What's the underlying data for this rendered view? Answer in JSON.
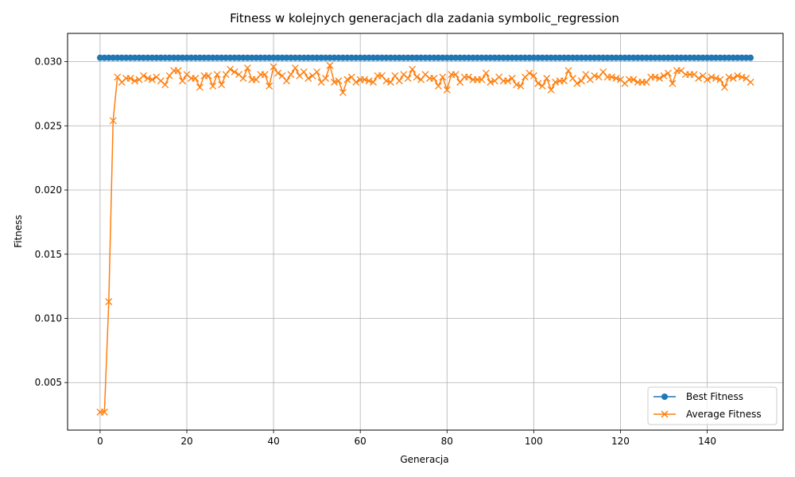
{
  "chart_data": {
    "type": "line",
    "title": "Fitness w kolejnych generacjach dla zadania symbolic_regression",
    "xlabel": "Generacja",
    "ylabel": "Fitness",
    "xlim": [
      -7.5,
      157.5
    ],
    "ylim": [
      0.0013,
      0.0322
    ],
    "xticks": [
      0,
      20,
      40,
      60,
      80,
      100,
      120,
      140
    ],
    "xtick_labels": [
      "0",
      "20",
      "40",
      "60",
      "80",
      "100",
      "120",
      "140"
    ],
    "yticks": [
      0.005,
      0.01,
      0.015,
      0.02,
      0.025,
      0.03
    ],
    "ytick_labels": [
      "0.005",
      "0.010",
      "0.015",
      "0.020",
      "0.025",
      "0.030"
    ],
    "grid": true,
    "legend_position": "lower right",
    "x": [
      0,
      1,
      2,
      3,
      4,
      5,
      6,
      7,
      8,
      9,
      10,
      11,
      12,
      13,
      14,
      15,
      16,
      17,
      18,
      19,
      20,
      21,
      22,
      23,
      24,
      25,
      26,
      27,
      28,
      29,
      30,
      31,
      32,
      33,
      34,
      35,
      36,
      37,
      38,
      39,
      40,
      41,
      42,
      43,
      44,
      45,
      46,
      47,
      48,
      49,
      50,
      51,
      52,
      53,
      54,
      55,
      56,
      57,
      58,
      59,
      60,
      61,
      62,
      63,
      64,
      65,
      66,
      67,
      68,
      69,
      70,
      71,
      72,
      73,
      74,
      75,
      76,
      77,
      78,
      79,
      80,
      81,
      82,
      83,
      84,
      85,
      86,
      87,
      88,
      89,
      90,
      91,
      92,
      93,
      94,
      95,
      96,
      97,
      98,
      99,
      100,
      101,
      102,
      103,
      104,
      105,
      106,
      107,
      108,
      109,
      110,
      111,
      112,
      113,
      114,
      115,
      116,
      117,
      118,
      119,
      120,
      121,
      122,
      123,
      124,
      125,
      126,
      127,
      128,
      129,
      130,
      131,
      132,
      133,
      134,
      135,
      136,
      137,
      138,
      139,
      140,
      141,
      142,
      143,
      144,
      145,
      146,
      147,
      148,
      149,
      150
    ],
    "series": [
      {
        "name": "Best Fitness",
        "color": "#1f77b4",
        "marker": "circle",
        "constant": 0.0303
      },
      {
        "name": "Average Fitness",
        "color": "#ff7f0e",
        "marker": "x",
        "values": [
          0.0027,
          0.0027,
          0.0113,
          0.0254,
          0.0288,
          0.0284,
          0.0287,
          0.0287,
          0.0285,
          0.0286,
          0.0289,
          0.0287,
          0.0286,
          0.0288,
          0.0285,
          0.0282,
          0.0289,
          0.0293,
          0.0293,
          0.0285,
          0.029,
          0.0287,
          0.0287,
          0.028,
          0.0289,
          0.0289,
          0.0281,
          0.029,
          0.0282,
          0.029,
          0.0294,
          0.0292,
          0.029,
          0.0287,
          0.0295,
          0.0286,
          0.0286,
          0.029,
          0.029,
          0.0281,
          0.0296,
          0.0291,
          0.0289,
          0.0285,
          0.029,
          0.0295,
          0.0289,
          0.0292,
          0.0287,
          0.0289,
          0.0292,
          0.0284,
          0.0287,
          0.0297,
          0.0284,
          0.0285,
          0.0276,
          0.0286,
          0.0288,
          0.0284,
          0.0286,
          0.0286,
          0.0285,
          0.0284,
          0.0289,
          0.0289,
          0.0285,
          0.0284,
          0.0289,
          0.0285,
          0.029,
          0.0287,
          0.0294,
          0.0288,
          0.0286,
          0.029,
          0.0287,
          0.0287,
          0.0281,
          0.0288,
          0.0278,
          0.029,
          0.029,
          0.0284,
          0.0288,
          0.0288,
          0.0286,
          0.0286,
          0.0286,
          0.0291,
          0.0284,
          0.0285,
          0.0288,
          0.0285,
          0.0285,
          0.0287,
          0.0282,
          0.0281,
          0.0288,
          0.0291,
          0.0289,
          0.0283,
          0.0281,
          0.0287,
          0.0278,
          0.0284,
          0.0285,
          0.0285,
          0.0293,
          0.0287,
          0.0283,
          0.0285,
          0.029,
          0.0286,
          0.0289,
          0.0288,
          0.0292,
          0.0288,
          0.0288,
          0.0287,
          0.0286,
          0.0283,
          0.0286,
          0.0286,
          0.0284,
          0.0284,
          0.0284,
          0.0288,
          0.0288,
          0.0287,
          0.0289,
          0.0291,
          0.0283,
          0.0293,
          0.0293,
          0.029,
          0.029,
          0.029,
          0.0287,
          0.0289,
          0.0286,
          0.0288,
          0.0287,
          0.0286,
          0.028,
          0.0288,
          0.0287,
          0.0289,
          0.0288,
          0.0287,
          0.0284
        ]
      }
    ]
  }
}
